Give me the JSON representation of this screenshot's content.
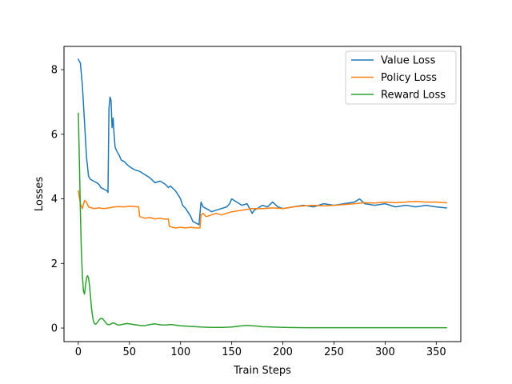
{
  "chart_data": {
    "type": "line",
    "title": "",
    "xlabel": "Train Steps",
    "ylabel": "Losses",
    "xlim": [
      -14,
      374
    ],
    "ylim": [
      -0.42,
      8.72
    ],
    "xticks": [
      0,
      50,
      100,
      150,
      200,
      250,
      300,
      350
    ],
    "yticks": [
      0,
      2,
      4,
      6,
      8
    ],
    "grid": false,
    "legend_position": "top-right",
    "series": [
      {
        "name": "Value Loss",
        "color": "#1f77b4",
        "points": [
          [
            0,
            8.32
          ],
          [
            2,
            8.2
          ],
          [
            4,
            7.5
          ],
          [
            6,
            6.4
          ],
          [
            8,
            5.3
          ],
          [
            10,
            4.7
          ],
          [
            12,
            4.6
          ],
          [
            15,
            4.55
          ],
          [
            18,
            4.5
          ],
          [
            20,
            4.45
          ],
          [
            22,
            4.35
          ],
          [
            25,
            4.3
          ],
          [
            28,
            4.25
          ],
          [
            29,
            4.2
          ],
          [
            30,
            6.8
          ],
          [
            31,
            7.15
          ],
          [
            32,
            7.05
          ],
          [
            33,
            6.2
          ],
          [
            34,
            6.5
          ],
          [
            35,
            6.0
          ],
          [
            36,
            5.6
          ],
          [
            38,
            5.45
          ],
          [
            40,
            5.35
          ],
          [
            42,
            5.2
          ],
          [
            45,
            5.15
          ],
          [
            48,
            5.05
          ],
          [
            50,
            5.0
          ],
          [
            55,
            4.9
          ],
          [
            60,
            4.85
          ],
          [
            65,
            4.75
          ],
          [
            70,
            4.65
          ],
          [
            75,
            4.5
          ],
          [
            80,
            4.55
          ],
          [
            85,
            4.45
          ],
          [
            88,
            4.35
          ],
          [
            90,
            4.4
          ],
          [
            95,
            4.25
          ],
          [
            98,
            4.1
          ],
          [
            100,
            4.0
          ],
          [
            102,
            3.8
          ],
          [
            105,
            3.7
          ],
          [
            108,
            3.55
          ],
          [
            110,
            3.45
          ],
          [
            112,
            3.3
          ],
          [
            115,
            3.25
          ],
          [
            118,
            3.2
          ],
          [
            120,
            3.9
          ],
          [
            122,
            3.75
          ],
          [
            125,
            3.7
          ],
          [
            128,
            3.65
          ],
          [
            130,
            3.6
          ],
          [
            135,
            3.65
          ],
          [
            140,
            3.7
          ],
          [
            145,
            3.75
          ],
          [
            148,
            3.85
          ],
          [
            150,
            4.0
          ],
          [
            155,
            3.9
          ],
          [
            160,
            3.8
          ],
          [
            165,
            3.85
          ],
          [
            170,
            3.55
          ],
          [
            172,
            3.65
          ],
          [
            175,
            3.7
          ],
          [
            180,
            3.8
          ],
          [
            185,
            3.75
          ],
          [
            190,
            3.9
          ],
          [
            195,
            3.75
          ],
          [
            200,
            3.7
          ],
          [
            210,
            3.75
          ],
          [
            220,
            3.8
          ],
          [
            230,
            3.75
          ],
          [
            240,
            3.85
          ],
          [
            250,
            3.8
          ],
          [
            260,
            3.85
          ],
          [
            270,
            3.9
          ],
          [
            275,
            4.0
          ],
          [
            280,
            3.85
          ],
          [
            290,
            3.8
          ],
          [
            300,
            3.85
          ],
          [
            310,
            3.75
          ],
          [
            320,
            3.8
          ],
          [
            330,
            3.75
          ],
          [
            340,
            3.8
          ],
          [
            350,
            3.75
          ],
          [
            360,
            3.72
          ]
        ]
      },
      {
        "name": "Policy Loss",
        "color": "#ff7f0e",
        "points": [
          [
            0,
            4.25
          ],
          [
            2,
            3.85
          ],
          [
            4,
            3.7
          ],
          [
            6,
            3.95
          ],
          [
            8,
            3.9
          ],
          [
            10,
            3.75
          ],
          [
            15,
            3.7
          ],
          [
            20,
            3.72
          ],
          [
            25,
            3.7
          ],
          [
            30,
            3.72
          ],
          [
            35,
            3.75
          ],
          [
            40,
            3.76
          ],
          [
            45,
            3.75
          ],
          [
            50,
            3.77
          ],
          [
            55,
            3.76
          ],
          [
            59,
            3.75
          ],
          [
            60,
            3.45
          ],
          [
            65,
            3.4
          ],
          [
            70,
            3.42
          ],
          [
            75,
            3.38
          ],
          [
            80,
            3.4
          ],
          [
            85,
            3.37
          ],
          [
            88,
            3.38
          ],
          [
            89,
            3.15
          ],
          [
            92,
            3.12
          ],
          [
            95,
            3.1
          ],
          [
            100,
            3.12
          ],
          [
            105,
            3.1
          ],
          [
            110,
            3.12
          ],
          [
            115,
            3.1
          ],
          [
            119,
            3.1
          ],
          [
            120,
            3.5
          ],
          [
            122,
            3.55
          ],
          [
            125,
            3.45
          ],
          [
            130,
            3.5
          ],
          [
            135,
            3.55
          ],
          [
            140,
            3.5
          ],
          [
            145,
            3.55
          ],
          [
            150,
            3.6
          ],
          [
            160,
            3.65
          ],
          [
            170,
            3.7
          ],
          [
            180,
            3.7
          ],
          [
            190,
            3.72
          ],
          [
            200,
            3.7
          ],
          [
            210,
            3.75
          ],
          [
            220,
            3.78
          ],
          [
            230,
            3.8
          ],
          [
            240,
            3.78
          ],
          [
            250,
            3.8
          ],
          [
            260,
            3.82
          ],
          [
            270,
            3.85
          ],
          [
            280,
            3.88
          ],
          [
            290,
            3.87
          ],
          [
            300,
            3.9
          ],
          [
            310,
            3.88
          ],
          [
            320,
            3.9
          ],
          [
            330,
            3.92
          ],
          [
            340,
            3.9
          ],
          [
            350,
            3.9
          ],
          [
            360,
            3.88
          ]
        ]
      },
      {
        "name": "Reward Loss",
        "color": "#2ca02c",
        "points": [
          [
            0,
            6.65
          ],
          [
            1,
            5.2
          ],
          [
            2,
            3.6
          ],
          [
            3,
            2.4
          ],
          [
            4,
            1.6
          ],
          [
            5,
            1.15
          ],
          [
            6,
            1.05
          ],
          [
            7,
            1.3
          ],
          [
            8,
            1.55
          ],
          [
            9,
            1.62
          ],
          [
            10,
            1.55
          ],
          [
            11,
            1.3
          ],
          [
            12,
            0.95
          ],
          [
            13,
            0.6
          ],
          [
            14,
            0.35
          ],
          [
            15,
            0.2
          ],
          [
            16,
            0.13
          ],
          [
            17,
            0.12
          ],
          [
            18,
            0.15
          ],
          [
            20,
            0.24
          ],
          [
            22,
            0.3
          ],
          [
            24,
            0.28
          ],
          [
            26,
            0.2
          ],
          [
            28,
            0.12
          ],
          [
            30,
            0.1
          ],
          [
            32,
            0.13
          ],
          [
            34,
            0.16
          ],
          [
            36,
            0.14
          ],
          [
            38,
            0.1
          ],
          [
            40,
            0.09
          ],
          [
            44,
            0.12
          ],
          [
            48,
            0.14
          ],
          [
            52,
            0.12
          ],
          [
            56,
            0.1
          ],
          [
            60,
            0.08
          ],
          [
            65,
            0.07
          ],
          [
            70,
            0.11
          ],
          [
            75,
            0.13
          ],
          [
            80,
            0.1
          ],
          [
            85,
            0.09
          ],
          [
            90,
            0.11
          ],
          [
            95,
            0.09
          ],
          [
            100,
            0.07
          ],
          [
            105,
            0.06
          ],
          [
            110,
            0.05
          ],
          [
            115,
            0.04
          ],
          [
            120,
            0.03
          ],
          [
            130,
            0.02
          ],
          [
            140,
            0.02
          ],
          [
            150,
            0.03
          ],
          [
            155,
            0.05
          ],
          [
            160,
            0.07
          ],
          [
            165,
            0.08
          ],
          [
            170,
            0.07
          ],
          [
            175,
            0.06
          ],
          [
            180,
            0.04
          ],
          [
            190,
            0.03
          ],
          [
            200,
            0.02
          ],
          [
            220,
            0.01
          ],
          [
            250,
            0.01
          ],
          [
            300,
            0.01
          ],
          [
            360,
            0.01
          ]
        ]
      }
    ]
  }
}
